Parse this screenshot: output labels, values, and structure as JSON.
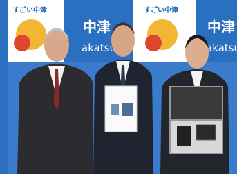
{
  "backdrop": {
    "panels": [
      {
        "logo": "すごい中津"
      },
      {
        "name_jp": "中津",
        "name_en": "akatsu"
      },
      {
        "logo": "すごい中津"
      },
      {
        "name_jp": "中津",
        "name_en": "akatsu"
      }
    ]
  }
}
